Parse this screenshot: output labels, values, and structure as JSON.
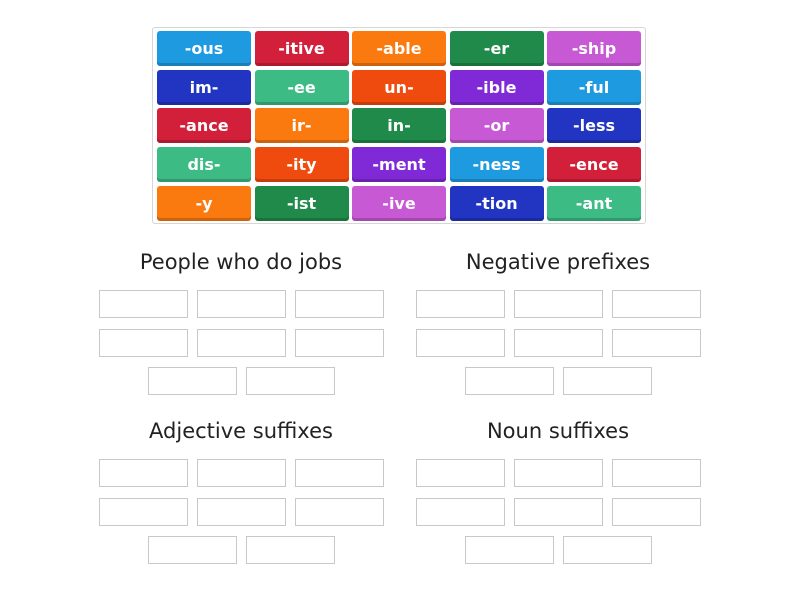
{
  "tiles": [
    {
      "label": "-ous",
      "color": "#1e9be0"
    },
    {
      "label": "-itive",
      "color": "#d3203a"
    },
    {
      "label": "-able",
      "color": "#fb7a10"
    },
    {
      "label": "-er",
      "color": "#1f8a4a"
    },
    {
      "label": "-ship",
      "color": "#c759d5"
    },
    {
      "label": "im-",
      "color": "#2135c2"
    },
    {
      "label": "-ee",
      "color": "#3dbb85"
    },
    {
      "label": "un-",
      "color": "#f04b0e"
    },
    {
      "label": "-ible",
      "color": "#7f2ad6"
    },
    {
      "label": "-ful",
      "color": "#1e9be0"
    },
    {
      "label": "-ance",
      "color": "#d3203a"
    },
    {
      "label": "ir-",
      "color": "#fb7a10"
    },
    {
      "label": "in-",
      "color": "#1f8a4a"
    },
    {
      "label": "-or",
      "color": "#c759d5"
    },
    {
      "label": "-less",
      "color": "#2135c2"
    },
    {
      "label": "dis-",
      "color": "#3dbb85"
    },
    {
      "label": "-ity",
      "color": "#f04b0e"
    },
    {
      "label": "-ment",
      "color": "#7f2ad6"
    },
    {
      "label": "-ness",
      "color": "#1e9be0"
    },
    {
      "label": "-ence",
      "color": "#d3203a"
    },
    {
      "label": "-y",
      "color": "#fb7a10"
    },
    {
      "label": "-ist",
      "color": "#1f8a4a"
    },
    {
      "label": "-ive",
      "color": "#c759d5"
    },
    {
      "label": "-tion",
      "color": "#2135c2"
    },
    {
      "label": "-ant",
      "color": "#3dbb85"
    }
  ],
  "groups": [
    {
      "title": "People who do jobs",
      "slots": 8
    },
    {
      "title": "Negative prefixes",
      "slots": 8
    },
    {
      "title": "Adjective suffixes",
      "slots": 8
    },
    {
      "title": "Noun suffixes",
      "slots": 8
    }
  ]
}
